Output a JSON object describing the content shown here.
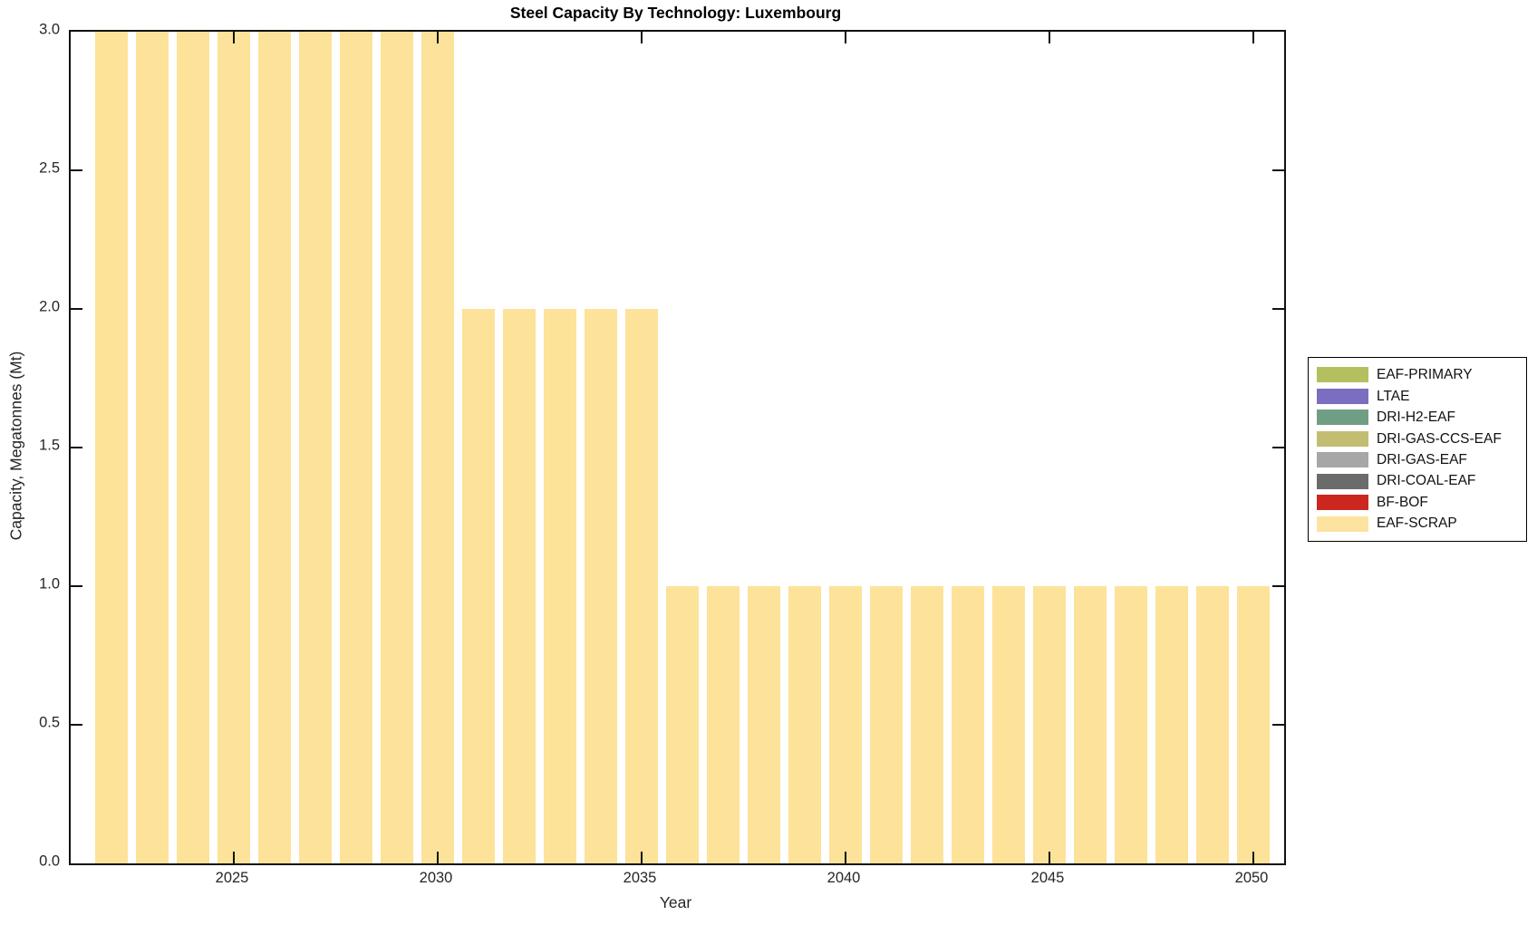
{
  "title": "Steel Capacity By Technology: Luxembourg",
  "axes": {
    "x_label": "Year",
    "y_label": "Capacity, Megatonnes (Mt)",
    "x_tick_labels": [
      "2025",
      "2030",
      "2035",
      "2040",
      "2045",
      "2050"
    ],
    "x_tick_years": [
      2025,
      2030,
      2035,
      2040,
      2045,
      2050
    ],
    "y_tick_labels": [
      "0.0",
      "0.5",
      "1.0",
      "1.5",
      "2.0",
      "2.5",
      "3.0"
    ],
    "y_tick_values": [
      0.0,
      0.5,
      1.0,
      1.5,
      2.0,
      2.5,
      3.0
    ]
  },
  "legend": {
    "position": "right-outside",
    "entries": [
      {
        "label": "EAF-PRIMARY",
        "color": "#b4c05f"
      },
      {
        "label": "LTAE",
        "color": "#7b6ec0"
      },
      {
        "label": "DRI-H2-EAF",
        "color": "#6f9e85"
      },
      {
        "label": "DRI-GAS-CCS-EAF",
        "color": "#c2bd71"
      },
      {
        "label": "DRI-GAS-EAF",
        "color": "#a7a7a7"
      },
      {
        "label": "DRI-COAL-EAF",
        "color": "#6b6b6b"
      },
      {
        "label": "BF-BOF",
        "color": "#cc271f"
      },
      {
        "label": "EAF-SCRAP",
        "color": "#fce3a0"
      }
    ]
  },
  "chart_data": {
    "type": "bar",
    "stacked": true,
    "title": "Steel Capacity By Technology: Luxembourg",
    "xlabel": "Year",
    "ylabel": "Capacity, Megatonnes (Mt)",
    "ylim": [
      0.0,
      3.0
    ],
    "xlim": [
      2021.4,
      2050.6
    ],
    "grid": false,
    "bar_width_fraction": 0.8,
    "x": [
      2022,
      2023,
      2024,
      2025,
      2026,
      2027,
      2028,
      2029,
      2030,
      2031,
      2032,
      2033,
      2034,
      2035,
      2036,
      2037,
      2038,
      2039,
      2040,
      2041,
      2042,
      2043,
      2044,
      2045,
      2046,
      2047,
      2048,
      2049,
      2050
    ],
    "series": [
      {
        "name": "EAF-SCRAP",
        "color": "#fde299",
        "values": [
          3,
          3,
          3,
          3,
          3,
          3,
          3,
          3,
          3,
          2,
          2,
          2,
          2,
          2,
          1,
          1,
          1,
          1,
          1,
          1,
          1,
          1,
          1,
          1,
          1,
          1,
          1,
          1,
          1
        ]
      },
      {
        "name": "EAF-PRIMARY",
        "color": "#b4c05f",
        "constant_value": 0
      },
      {
        "name": "LTAE",
        "color": "#7b6ec0",
        "constant_value": 0
      },
      {
        "name": "DRI-H2-EAF",
        "color": "#6f9e85",
        "constant_value": 0
      },
      {
        "name": "DRI-GAS-CCS-EAF",
        "color": "#c2bd71",
        "constant_value": 0
      },
      {
        "name": "DRI-GAS-EAF",
        "color": "#a7a7a7",
        "constant_value": 0
      },
      {
        "name": "DRI-COAL-EAF",
        "color": "#6b6b6b",
        "constant_value": 0
      },
      {
        "name": "BF-BOF",
        "color": "#cc271f",
        "constant_value": 0
      }
    ]
  }
}
